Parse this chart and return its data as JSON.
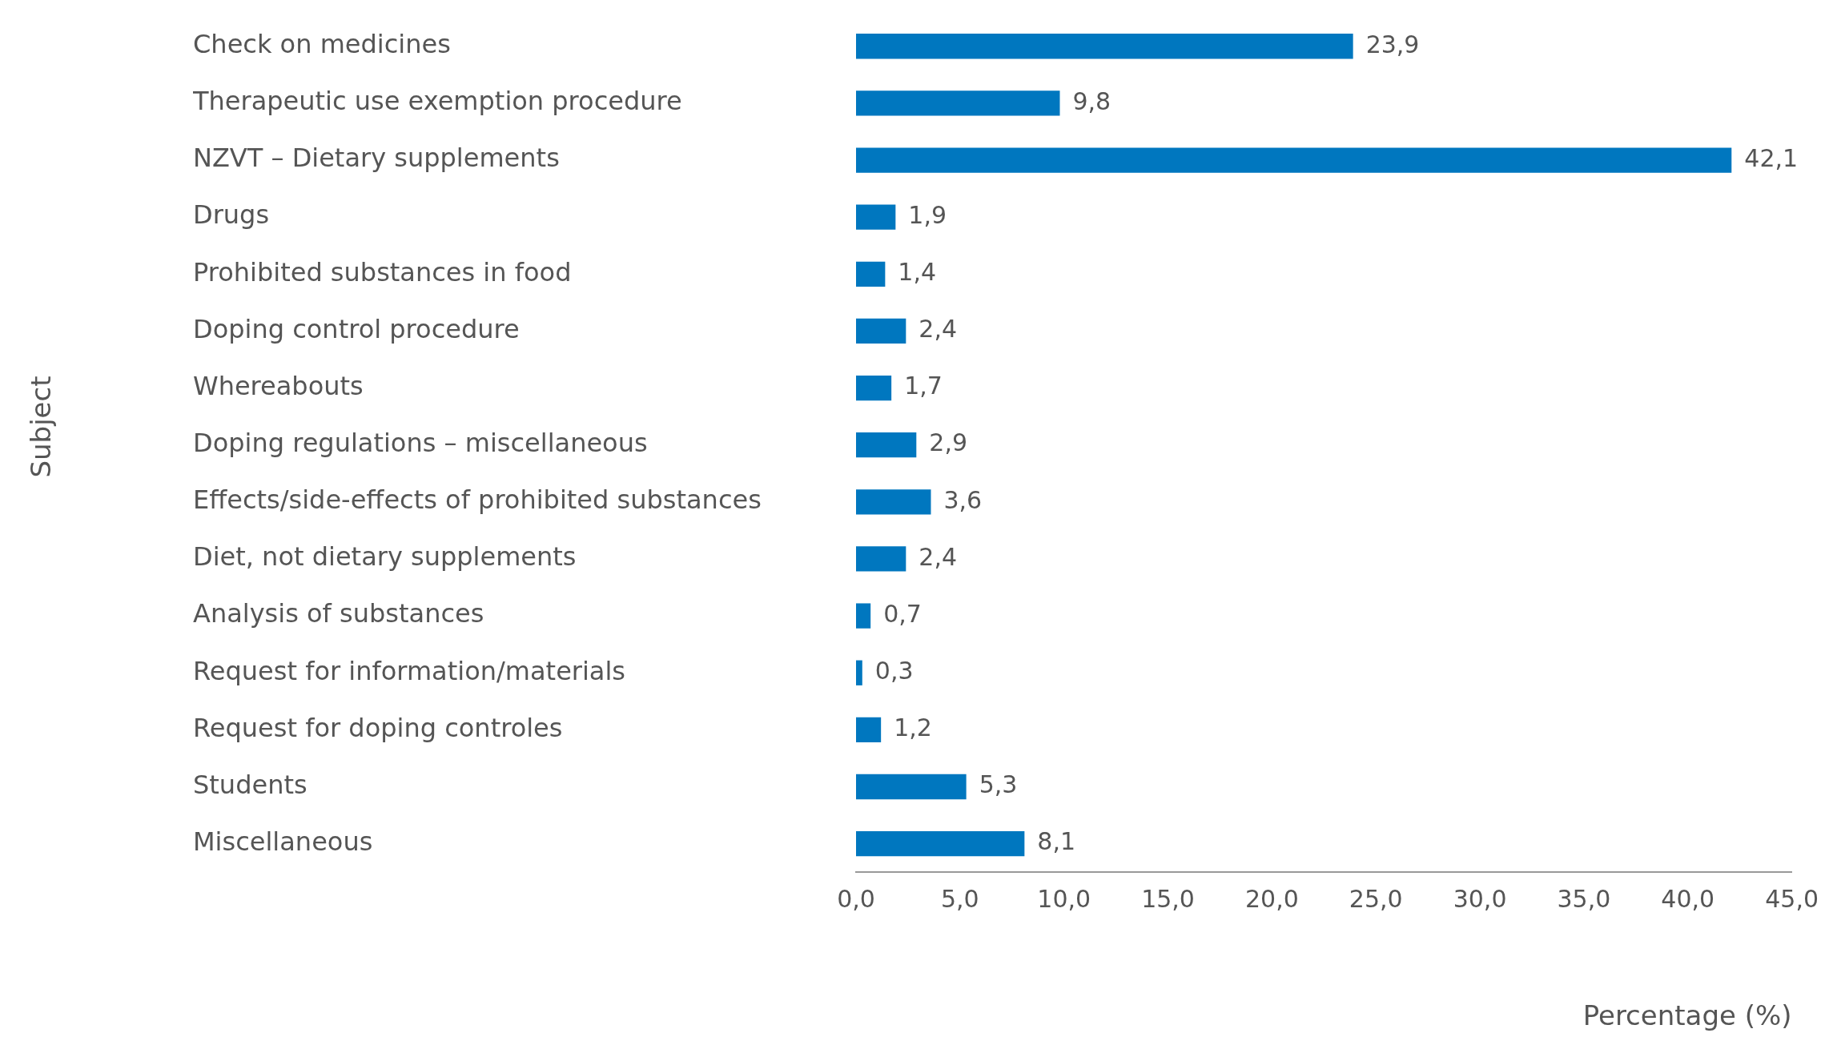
{
  "chart_data": {
    "type": "bar",
    "orientation": "horizontal",
    "categories": [
      "Check on medicines",
      "Therapeutic use exemption procedure",
      "NZVT – Dietary supplements",
      "Drugs",
      "Prohibited substances in food",
      "Doping control procedure",
      "Whereabouts",
      "Doping regulations – miscellaneous",
      "Effects/side-effects of prohibited substances",
      "Diet, not dietary supplements",
      "Analysis of substances",
      "Request for information/materials",
      "Request for doping controles",
      "Students",
      "Miscellaneous"
    ],
    "values": [
      23.9,
      9.8,
      42.1,
      1.9,
      1.4,
      2.4,
      1.7,
      2.9,
      3.6,
      2.4,
      0.7,
      0.3,
      1.2,
      5.3,
      8.1
    ],
    "value_labels": [
      "23,9",
      "9,8",
      "42,1",
      "1,9",
      "1,4",
      "2,4",
      "1,7",
      "2,9",
      "3,6",
      "2,4",
      "0,7",
      "0,3",
      "1,2",
      "5,3",
      "8,1"
    ],
    "color": "#0077bf",
    "xlim": [
      0,
      45
    ],
    "xticks": [
      {
        "value": 0,
        "label": "0,0"
      },
      {
        "value": 5,
        "label": "5,0"
      },
      {
        "value": 10,
        "label": "10,0"
      },
      {
        "value": 15,
        "label": "15,0"
      },
      {
        "value": 20,
        "label": "20,0"
      },
      {
        "value": 25,
        "label": "25,0"
      },
      {
        "value": 30,
        "label": "30,0"
      },
      {
        "value": 35,
        "label": "35,0"
      },
      {
        "value": 40,
        "label": "40,0"
      },
      {
        "value": 45,
        "label": "45,0"
      }
    ],
    "xlabel": "Percentage (%)",
    "ylabel": "Subject"
  }
}
